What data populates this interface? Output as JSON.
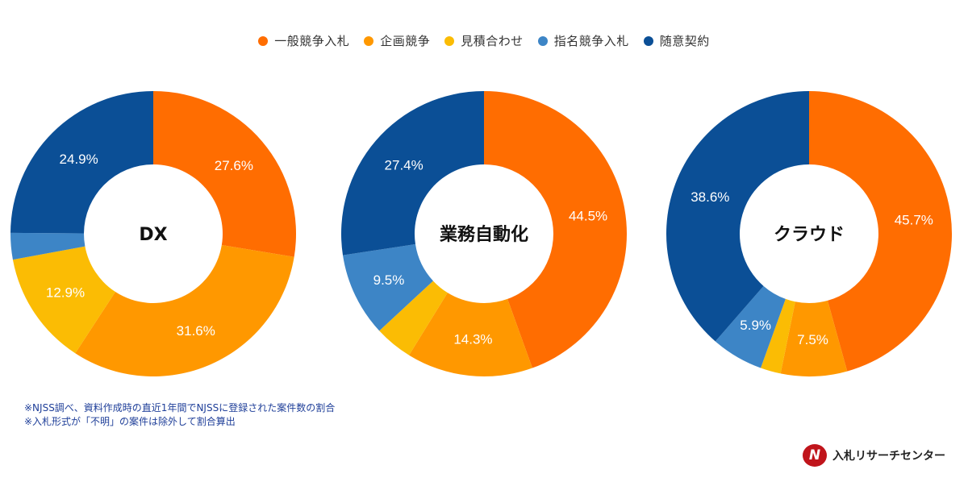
{
  "legend": [
    {
      "label": "一般競争入札",
      "color": "#ff6d01"
    },
    {
      "label": "企画競争",
      "color": "#ff9800"
    },
    {
      "label": "見積合わせ",
      "color": "#fbbc04"
    },
    {
      "label": "指名競争入札",
      "color": "#3d85c6"
    },
    {
      "label": "随意契約",
      "color": "#0b4f96"
    }
  ],
  "chart_data": [
    {
      "type": "pie",
      "donut": true,
      "center_label": "DX",
      "labels": [
        "一般競争入札",
        "企画競争",
        "見積合わせ",
        "指名競争入札",
        "随意契約"
      ],
      "values": [
        27.6,
        31.6,
        12.9,
        3.0,
        24.9
      ],
      "data_labels": [
        "27.6%",
        "31.6%",
        "12.9%",
        "",
        "24.9%"
      ]
    },
    {
      "type": "pie",
      "donut": true,
      "center_label": "業務自動化",
      "labels": [
        "一般競争入札",
        "企画競争",
        "見積合わせ",
        "指名競争入札",
        "随意契約"
      ],
      "values": [
        44.5,
        14.3,
        4.3,
        9.5,
        27.4
      ],
      "data_labels": [
        "44.5%",
        "14.3%",
        "",
        "9.5%",
        "27.4%"
      ]
    },
    {
      "type": "pie",
      "donut": true,
      "center_label": "クラウド",
      "labels": [
        "一般競争入札",
        "企画競争",
        "見積合わせ",
        "指名競争入札",
        "随意契約"
      ],
      "values": [
        45.7,
        7.5,
        2.3,
        5.9,
        38.6
      ],
      "data_labels": [
        "45.7%",
        "7.5%",
        "",
        "5.9%",
        "38.6%"
      ]
    }
  ],
  "notes": [
    "※NJSS調べ、資料作成時の直近1年間でNJSSに登録された案件数の割合",
    "※入札形式が「不明」の案件は除外して割合算出"
  ],
  "logo": {
    "mark": "N",
    "text": "入札リサーチセンター"
  }
}
